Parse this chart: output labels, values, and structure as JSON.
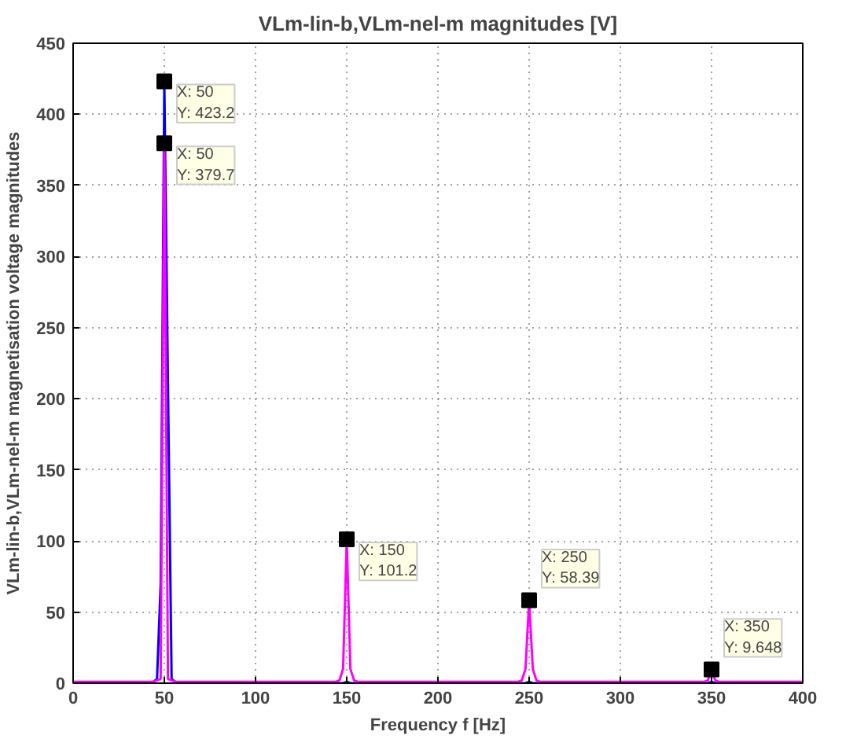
{
  "chart_data": {
    "type": "line",
    "title": "VLm-lin-b,VLm-nel-m magnitudes [V]",
    "xlabel": "Frequency f [Hz]",
    "ylabel": "VLm-lin-b,VLm-nel-m magnetisation voltage magnitudes",
    "xlim": [
      0,
      400
    ],
    "ylim": [
      0,
      450
    ],
    "xticks": [
      0,
      50,
      100,
      150,
      200,
      250,
      300,
      350,
      400
    ],
    "yticks": [
      0,
      50,
      100,
      150,
      200,
      250,
      300,
      350,
      400,
      450
    ],
    "grid": true,
    "line_style": "solid",
    "series": [
      {
        "color": "#0000ff",
        "x": [
          0,
          44,
          46,
          48,
          50,
          52,
          54,
          56,
          148,
          150,
          152,
          248,
          250,
          252,
          348,
          350,
          352,
          400
        ],
        "values": [
          0,
          1,
          3,
          70,
          423.2,
          210,
          3,
          1,
          0,
          1,
          0,
          0,
          1,
          0,
          0,
          1,
          0,
          0
        ]
      },
      {
        "color": "#ff00ff",
        "x": [
          0,
          44,
          46,
          48,
          50,
          52,
          54,
          56,
          144,
          146,
          148,
          150,
          152,
          154,
          156,
          244,
          246,
          248,
          250,
          252,
          254,
          256,
          344,
          346,
          348,
          350,
          352,
          354,
          356,
          400
        ],
        "values": [
          1,
          1,
          2,
          3,
          379.7,
          3,
          2,
          1,
          1,
          2,
          10,
          101.2,
          10,
          2,
          1,
          1,
          2,
          10,
          58.39,
          10,
          2,
          1,
          1,
          1,
          2,
          9.648,
          2,
          1,
          1,
          1
        ]
      }
    ],
    "annotations": [
      {
        "text": "X: 50\nY: 423.2",
        "x": 50,
        "y": 423.2
      },
      {
        "text": "X: 50\nY: 379.7",
        "x": 50,
        "y": 379.7
      },
      {
        "text": "X: 150\nY: 101.2",
        "x": 150,
        "y": 101.2
      },
      {
        "text": "X: 250\nY: 58.39",
        "x": 250,
        "y": 58.39
      },
      {
        "text": "X: 350\nY: 9.648",
        "x": 350,
        "y": 9.648
      }
    ]
  }
}
